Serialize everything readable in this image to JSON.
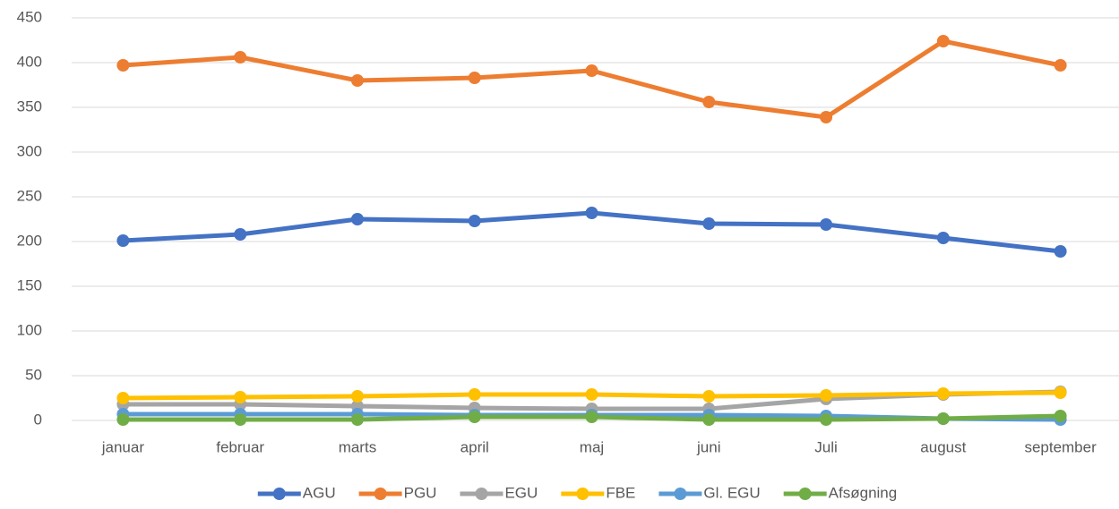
{
  "chart_data": {
    "type": "line",
    "categories": [
      "januar",
      "februar",
      "marts",
      "april",
      "maj",
      "juni",
      "Juli",
      "august",
      "september"
    ],
    "series": [
      {
        "name": "AGU",
        "color": "#4472c4",
        "values": [
          201,
          208,
          225,
          223,
          232,
          220,
          219,
          204,
          189
        ]
      },
      {
        "name": "PGU",
        "color": "#ed7d31",
        "values": [
          397,
          406,
          380,
          383,
          391,
          356,
          339,
          424,
          397
        ]
      },
      {
        "name": "EGU",
        "color": "#a5a5a5",
        "values": [
          18,
          18,
          16,
          14,
          13,
          13,
          24,
          29,
          32
        ]
      },
      {
        "name": "FBE",
        "color": "#ffc000",
        "values": [
          25,
          26,
          27,
          29,
          29,
          27,
          28,
          30,
          31
        ]
      },
      {
        "name": "Gl. EGU",
        "color": "#5b9bd5",
        "values": [
          7,
          7,
          7,
          6,
          6,
          6,
          5,
          2,
          1
        ]
      },
      {
        "name": "Afsøgning",
        "color": "#70ad47",
        "values": [
          1,
          1,
          1,
          4,
          4,
          1,
          1,
          2,
          5
        ]
      }
    ],
    "ylim": [
      0,
      450
    ],
    "yticks": [
      0,
      50,
      100,
      150,
      200,
      250,
      300,
      350,
      400,
      450
    ],
    "grid": true,
    "legend": "bottom"
  }
}
